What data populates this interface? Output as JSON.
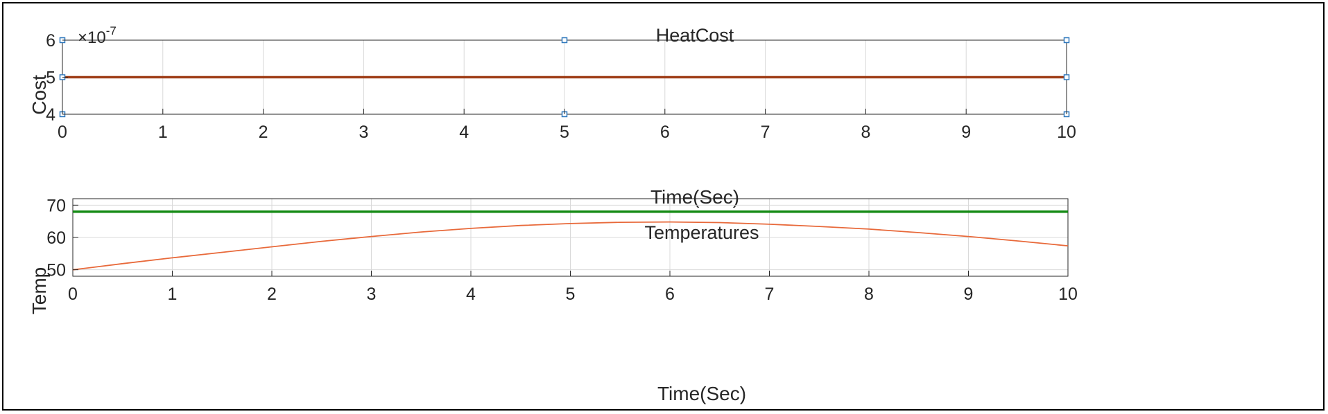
{
  "chart_data": [
    {
      "type": "line",
      "title": "HeatCost",
      "xlabel": "Time(Sec)",
      "ylabel": "Cost",
      "exponent_label": "×10",
      "exponent_power": "-7",
      "xlim": [
        0,
        10
      ],
      "ylim": [
        4,
        6
      ],
      "xticks": [
        0,
        1,
        2,
        3,
        4,
        5,
        6,
        7,
        8,
        9,
        10
      ],
      "yticks": [
        4,
        5,
        6
      ],
      "ytick_labels": [
        "4",
        "5",
        "6"
      ],
      "grid": true,
      "series": [
        {
          "color": "#a0401a",
          "x": [
            0,
            10
          ],
          "y": [
            5,
            5
          ]
        }
      ],
      "data_tips": [
        {
          "x": 0,
          "y": 4
        },
        {
          "x": 0,
          "y": 5
        },
        {
          "x": 0,
          "y": 6
        },
        {
          "x": 5,
          "y": 4
        },
        {
          "x": 5,
          "y": 6
        },
        {
          "x": 10,
          "y": 4
        },
        {
          "x": 10,
          "y": 5
        },
        {
          "x": 10,
          "y": 6
        }
      ],
      "data_tip_color": "#2f78bd"
    },
    {
      "type": "line",
      "title": "Temperatures",
      "xlabel": "Time(Sec)",
      "ylabel": "Temp",
      "xlim": [
        0,
        10
      ],
      "ylim": [
        48,
        72
      ],
      "xticks": [
        0,
        1,
        2,
        3,
        4,
        5,
        6,
        7,
        8,
        9,
        10
      ],
      "yticks": [
        50,
        60,
        70
      ],
      "ytick_labels": [
        "50",
        "60",
        "70"
      ],
      "grid": true,
      "series": [
        {
          "color": "#138a13",
          "x": [
            0,
            10
          ],
          "y": [
            68,
            68
          ]
        },
        {
          "color": "#e8693a",
          "x": [
            0,
            0.5,
            1,
            1.5,
            2,
            2.5,
            3,
            3.5,
            4,
            4.5,
            5,
            5.5,
            6,
            6.5,
            7,
            7.5,
            8,
            8.5,
            9,
            9.5,
            10
          ],
          "y": [
            50,
            51.9,
            53.7,
            55.4,
            57.1,
            58.8,
            60.3,
            61.7,
            62.8,
            63.7,
            64.3,
            64.7,
            64.8,
            64.6,
            64.1,
            63.4,
            62.6,
            61.5,
            60.3,
            58.9,
            57.4
          ]
        }
      ]
    }
  ]
}
